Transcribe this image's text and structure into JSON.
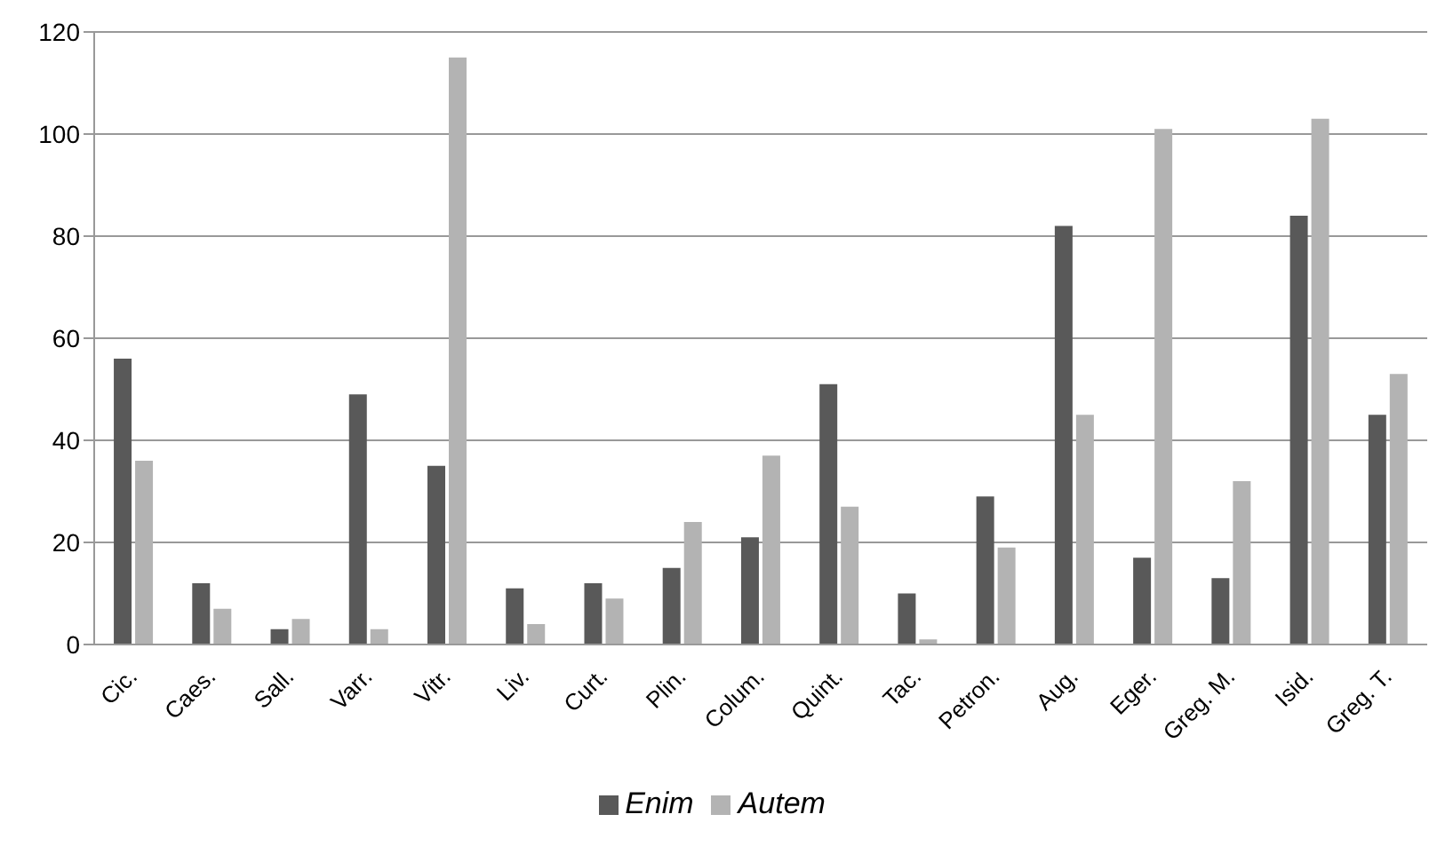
{
  "chart_data": {
    "type": "bar",
    "categories": [
      "Cic.",
      "Caes.",
      "Sall.",
      "Varr.",
      "Vitr.",
      "Liv.",
      "Curt.",
      "Plin.",
      "Colum.",
      "Quint.",
      "Tac.",
      "Petron.",
      "Aug.",
      "Eger.",
      "Greg. M.",
      "Isid.",
      "Greg. T."
    ],
    "series": [
      {
        "name": "Enim",
        "color": "#595959",
        "values": [
          56,
          12,
          3,
          49,
          35,
          11,
          12,
          15,
          21,
          51,
          10,
          29,
          82,
          17,
          13,
          84,
          45
        ]
      },
      {
        "name": "Autem",
        "color": "#b3b3b3",
        "values": [
          36,
          7,
          5,
          3,
          115,
          4,
          9,
          24,
          37,
          27,
          1,
          19,
          45,
          101,
          32,
          103,
          53
        ]
      }
    ],
    "ylim": [
      0,
      120
    ],
    "yticks": [
      0,
      20,
      40,
      60,
      80,
      100,
      120
    ],
    "grid": "y",
    "legend": "bottom"
  }
}
